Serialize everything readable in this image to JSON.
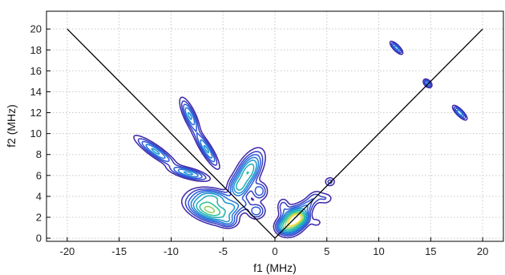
{
  "chart_data": {
    "type": "contour",
    "xlabel": "f1 (MHz)",
    "ylabel": "f2 (MHz)",
    "xlim": [
      -22,
      22
    ],
    "ylim": [
      -0.3,
      21.7
    ],
    "xticks": [
      -20,
      -15,
      -10,
      -5,
      0,
      5,
      10,
      15,
      20
    ],
    "xtick_labels": [
      "-20",
      "-15",
      "-10",
      "-5",
      "0",
      "5",
      "10",
      "15",
      "20"
    ],
    "yticks": [
      0,
      2,
      4,
      6,
      8,
      10,
      12,
      14,
      16,
      18,
      20
    ],
    "ytick_labels": [
      "0",
      "2",
      "4",
      "6",
      "8",
      "10",
      "12",
      "14",
      "16",
      "18",
      "20"
    ],
    "grid": true,
    "grid_style": "dotted",
    "colormap": "parula",
    "colors": {
      "contour_low": "#3b3fa3",
      "contour_mid": "#2a7fd4",
      "contour_high": "#2fc7c7",
      "peak": "#e8d63a",
      "diagonal": "#000000",
      "grid": "#c8c8c8"
    },
    "reference_lines": [
      {
        "x": [
          0,
          -20
        ],
        "y": [
          0,
          20
        ]
      },
      {
        "x": [
          0,
          20
        ],
        "y": [
          0,
          20
        ]
      }
    ],
    "peaks": [
      {
        "x": 1.8,
        "y": 1.7,
        "sx": 0.75,
        "sy": 0.55,
        "rot": 45,
        "amp": 1.0
      },
      {
        "x": 0.9,
        "y": 1.1,
        "sx": 0.5,
        "sy": 0.4,
        "rot": 0,
        "amp": 0.3
      },
      {
        "x": 2.5,
        "y": 2.0,
        "sx": 0.45,
        "sy": 0.4,
        "rot": 0,
        "amp": 0.35
      },
      {
        "x": 0.8,
        "y": 3.0,
        "sx": 0.35,
        "sy": 0.5,
        "rot": 0,
        "amp": 0.14
      },
      {
        "x": 3.0,
        "y": 3.0,
        "sx": 0.4,
        "sy": 0.35,
        "rot": 0,
        "amp": 0.14
      },
      {
        "x": 3.6,
        "y": 3.7,
        "sx": 0.6,
        "sy": 0.35,
        "rot": 45,
        "amp": 0.15
      },
      {
        "x": 4.8,
        "y": 3.8,
        "sx": 0.5,
        "sy": 0.35,
        "rot": 0,
        "amp": 0.1
      },
      {
        "x": 4.0,
        "y": 1.5,
        "sx": 0.4,
        "sy": 0.3,
        "rot": 0,
        "amp": 0.07
      },
      {
        "x": 5.3,
        "y": 5.4,
        "sx": 0.32,
        "sy": 0.28,
        "rot": 0,
        "amp": 0.12
      },
      {
        "x": -2.6,
        "y": 6.3,
        "sx": 0.55,
        "sy": 1.2,
        "rot": -30,
        "amp": 0.55
      },
      {
        "x": -3.5,
        "y": 4.8,
        "sx": 0.55,
        "sy": 0.6,
        "rot": 0,
        "amp": 0.28
      },
      {
        "x": -1.5,
        "y": 4.5,
        "sx": 0.45,
        "sy": 0.5,
        "rot": 0,
        "amp": 0.22
      },
      {
        "x": -1.8,
        "y": 2.6,
        "sx": 0.5,
        "sy": 0.45,
        "rot": 0,
        "amp": 0.22
      },
      {
        "x": -6.3,
        "y": 2.7,
        "sx": 1.2,
        "sy": 0.55,
        "rot": -20,
        "amp": 0.75
      },
      {
        "x": -6.0,
        "y": 3.9,
        "sx": 1.1,
        "sy": 0.45,
        "rot": -10,
        "amp": 0.4
      },
      {
        "x": -4.2,
        "y": 2.9,
        "sx": 0.6,
        "sy": 0.45,
        "rot": 0,
        "amp": 0.28
      },
      {
        "x": -4.5,
        "y": 1.6,
        "sx": 0.5,
        "sy": 0.35,
        "rot": 0,
        "amp": 0.18
      },
      {
        "x": -3.0,
        "y": 3.3,
        "sx": 0.45,
        "sy": 0.4,
        "rot": 0,
        "amp": 0.14
      },
      {
        "x": -6.6,
        "y": 8.5,
        "sx": 1.15,
        "sy": 0.28,
        "rot": -58,
        "amp": 0.33
      },
      {
        "x": -8.2,
        "y": 11.7,
        "sx": 1.0,
        "sy": 0.3,
        "rot": -65,
        "amp": 0.33
      },
      {
        "x": -11.5,
        "y": 8.3,
        "sx": 1.3,
        "sy": 0.3,
        "rot": -35,
        "amp": 0.33
      },
      {
        "x": -8.3,
        "y": 6.2,
        "sx": 1.1,
        "sy": 0.28,
        "rot": -15,
        "amp": 0.33
      },
      {
        "x": 11.7,
        "y": 18.2,
        "sx": 0.45,
        "sy": 0.16,
        "rot": -45,
        "amp": 0.28
      },
      {
        "x": 14.7,
        "y": 14.8,
        "sx": 0.28,
        "sy": 0.18,
        "rot": -45,
        "amp": 0.25
      },
      {
        "x": 17.8,
        "y": 12.0,
        "sx": 0.5,
        "sy": 0.17,
        "rot": -45,
        "amp": 0.3
      }
    ],
    "contour_levels": [
      0.05,
      0.1,
      0.16,
      0.23,
      0.31,
      0.42,
      0.55,
      0.7,
      0.85
    ]
  }
}
